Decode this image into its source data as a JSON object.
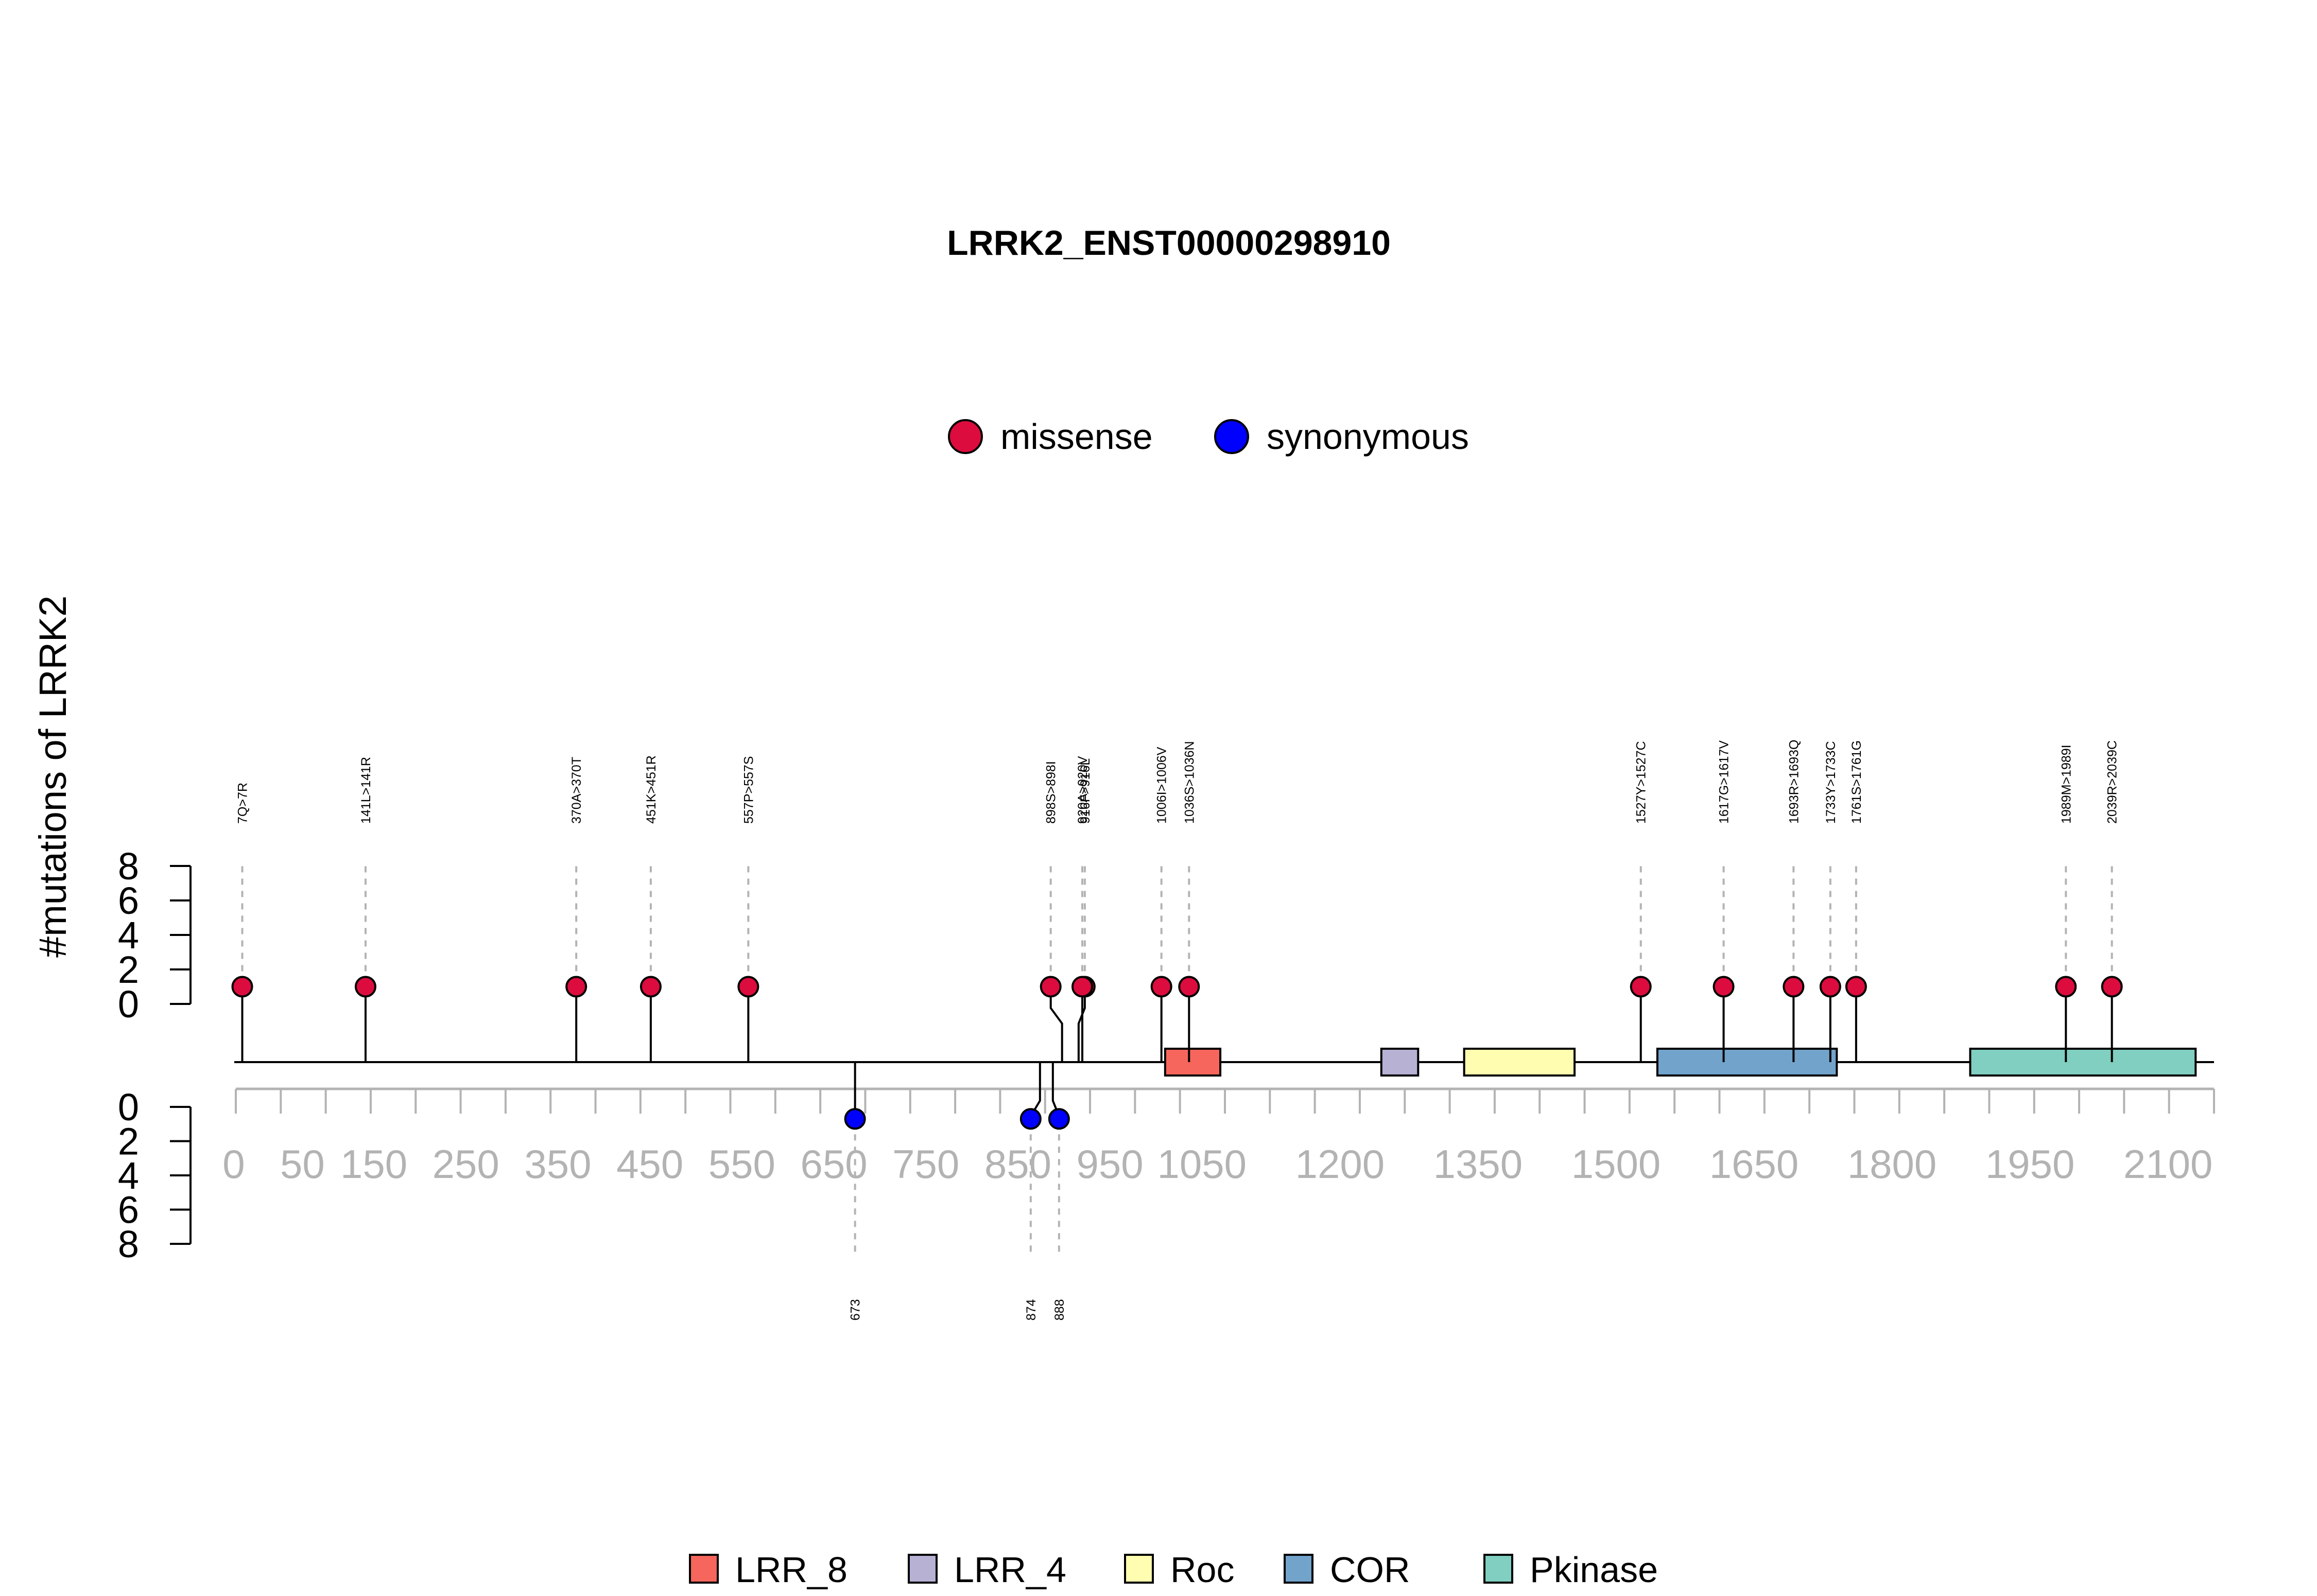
{
  "chart_data": {
    "type": "lollipop",
    "title": "LRRK2_ENST00000298910",
    "ylabel": "#mutations of LRRK2",
    "x_ticks": [
      0,
      50,
      150,
      250,
      350,
      450,
      550,
      650,
      750,
      850,
      950,
      1050,
      1200,
      1350,
      1500,
      1650,
      1800,
      1950,
      2100
    ],
    "x_range": [
      0,
      2150
    ],
    "y_ticks_top": [
      "0",
      "2",
      "4",
      "6",
      "8"
    ],
    "y_ticks_bottom": [
      "0",
      "2",
      "4",
      "6",
      "8"
    ],
    "y_range": [
      0,
      8
    ],
    "mutation_legend": [
      {
        "name": "missense",
        "color": "#dc0c3e"
      },
      {
        "name": "synonymous",
        "color": "#0000ff"
      }
    ],
    "domain_legend": [
      {
        "name": "LRR_8",
        "color": "#f6665c"
      },
      {
        "name": "LRR_4",
        "color": "#b7b1d4"
      },
      {
        "name": "Roc",
        "color": "#fefdb0"
      },
      {
        "name": "COR",
        "color": "#72a3cb"
      },
      {
        "name": "Pkinase",
        "color": "#80cfc0"
      }
    ],
    "domains": [
      {
        "name": "LRR_8",
        "start": 1010,
        "end": 1070
      },
      {
        "name": "LRR_4",
        "start": 1245,
        "end": 1285
      },
      {
        "name": "Roc",
        "start": 1335,
        "end": 1455
      },
      {
        "name": "COR",
        "start": 1545,
        "end": 1740
      },
      {
        "name": "Pkinase",
        "start": 1885,
        "end": 2130
      }
    ],
    "missense": [
      {
        "position": 7,
        "count": 1,
        "label": "7Q>7R"
      },
      {
        "position": 141,
        "count": 1,
        "label": "141L>141R"
      },
      {
        "position": 370,
        "count": 1,
        "label": "370A>370T"
      },
      {
        "position": 451,
        "count": 1,
        "label": "451K>451R"
      },
      {
        "position": 557,
        "count": 1,
        "label": "557P>557S"
      },
      {
        "position": 898,
        "count": 1,
        "label": "898S>898I"
      },
      {
        "position": 916,
        "count": 1,
        "label": "916F>916L"
      },
      {
        "position": 920,
        "count": 1,
        "label": "920A>920V"
      },
      {
        "position": 1006,
        "count": 1,
        "label": "1006I>1006V"
      },
      {
        "position": 1036,
        "count": 1,
        "label": "1036S>1036N"
      },
      {
        "position": 1527,
        "count": 1,
        "label": "1527Y>1527C"
      },
      {
        "position": 1617,
        "count": 1,
        "label": "1617G>1617V"
      },
      {
        "position": 1693,
        "count": 1,
        "label": "1693R>1693Q"
      },
      {
        "position": 1733,
        "count": 1,
        "label": "1733Y>1733C"
      },
      {
        "position": 1761,
        "count": 1,
        "label": "1761S>1761G"
      },
      {
        "position": 1989,
        "count": 1,
        "label": "1989M>1989I"
      },
      {
        "position": 2039,
        "count": 1,
        "label": "2039R>2039C"
      }
    ],
    "synonymous": [
      {
        "position": 673,
        "count": 1,
        "label": "673"
      },
      {
        "position": 874,
        "count": 1,
        "label": "874"
      },
      {
        "position": 888,
        "count": 1,
        "label": "888"
      }
    ]
  }
}
